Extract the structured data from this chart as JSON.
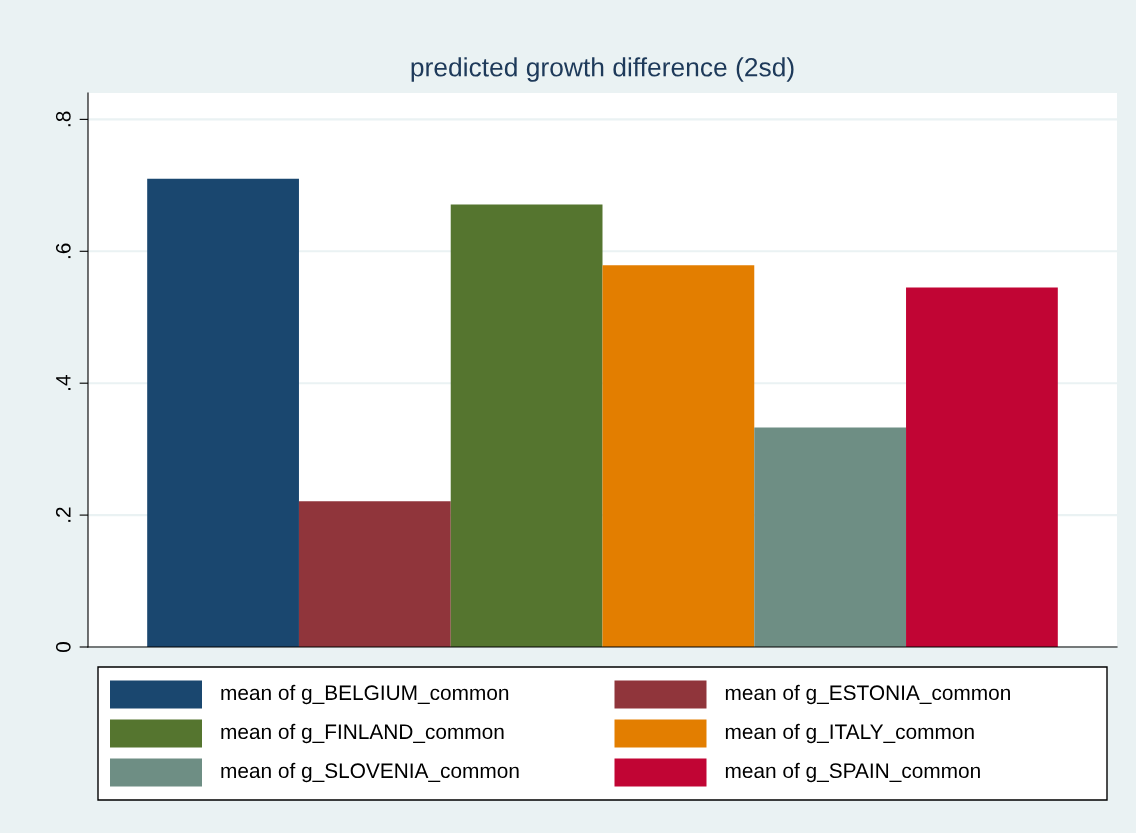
{
  "chart_data": {
    "type": "bar",
    "title": "predicted growth difference (2sd)",
    "categories": [
      null
    ],
    "series": [
      {
        "name": "mean of g_BELGIUM_common",
        "color": "#1a476f",
        "values": [
          0.71
        ]
      },
      {
        "name": "mean of g_ESTONIA_common",
        "color": "#90353b",
        "values": [
          0.221
        ]
      },
      {
        "name": "mean of g_FINLAND_common",
        "color": "#55752f",
        "values": [
          0.671
        ]
      },
      {
        "name": "mean of g_ITALY_common",
        "color": "#e37e00",
        "values": [
          0.579
        ]
      },
      {
        "name": "mean of g_SLOVENIA_common",
        "color": "#6e8e84",
        "values": [
          0.333
        ]
      },
      {
        "name": "mean of g_SPAIN_common",
        "color": "#c10534",
        "values": [
          0.545
        ]
      }
    ],
    "ylim": [
      0,
      0.84
    ],
    "yticks": [
      {
        "value": 0,
        "label": "0"
      },
      {
        "value": 0.2,
        "label": ".2"
      },
      {
        "value": 0.4,
        "label": ".4"
      },
      {
        "value": 0.6,
        "label": ".6"
      },
      {
        "value": 0.8,
        "label": ".8"
      }
    ],
    "grid": "y",
    "legend": "bottom"
  }
}
